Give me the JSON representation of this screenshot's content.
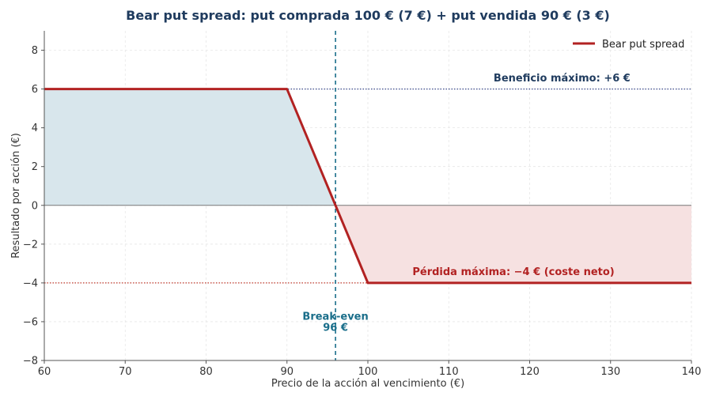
{
  "chart_data": {
    "type": "line",
    "title": "Bear put spread: put comprada 100 € (7 €) + put vendida 90 € (3 €)",
    "xlabel": "Precio de la acción al vencimiento (€)",
    "ylabel": "Resultado por acción (€)",
    "xlim": [
      60,
      140
    ],
    "ylim": [
      -8,
      9
    ],
    "xticks": [
      60,
      70,
      80,
      90,
      100,
      110,
      120,
      130,
      140
    ],
    "xtick_labels": [
      "60",
      "70",
      "80",
      "90",
      "100",
      "110",
      "120",
      "130",
      "140"
    ],
    "yticks": [
      -8,
      -6,
      -4,
      -2,
      0,
      2,
      4,
      6,
      8
    ],
    "ytick_labels": [
      "−8",
      "−6",
      "−4",
      "−2",
      "0",
      "2",
      "4",
      "6",
      "8"
    ],
    "grid": true,
    "legend_position": "top-right",
    "series": [
      {
        "name": "Bear put spread",
        "color": "#b22222",
        "x": [
          60,
          90,
          96,
          100,
          140
        ],
        "y": [
          6,
          6,
          0,
          -4,
          -4
        ]
      }
    ],
    "reference_lines": {
      "max_profit_y": 6,
      "max_loss_y": -4,
      "zero_y": 0,
      "breakeven_x": 96
    },
    "annotations": {
      "max_profit": {
        "text": "Beneficio máximo: +6 €",
        "x": 124,
        "y": 6.6,
        "color": "#1f3b5e"
      },
      "max_loss": {
        "text": "Pérdida máxima: −4 € (coste neto)",
        "x": 118,
        "y": -3.4,
        "color": "#b22222"
      },
      "breakeven": {
        "lines": [
          "Break-even",
          "96 €"
        ],
        "x": 96,
        "y": -5.9,
        "color": "#1a6e8a"
      }
    },
    "colors": {
      "title": "#1f3b5e",
      "profit_fill": "#d8e6ec",
      "loss_fill": "#f6e1e1",
      "max_profit_line": "#3b4a8c",
      "max_loss_line": "#c0392b",
      "breakeven_line": "#1a6e8a",
      "zero_line": "#777777",
      "grid": "#e6e6e6"
    }
  }
}
